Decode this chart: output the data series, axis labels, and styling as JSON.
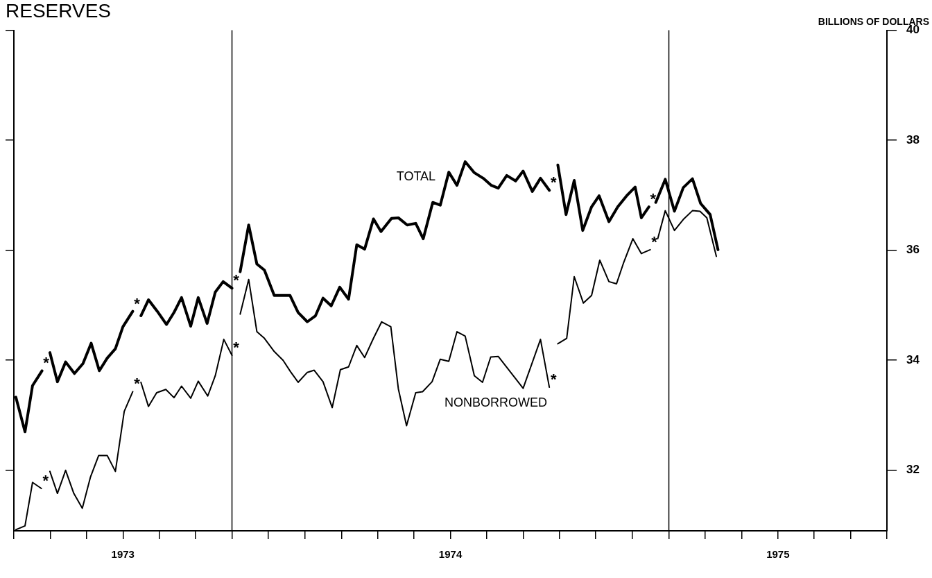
{
  "chart_data": {
    "type": "line",
    "title": "RESERVES",
    "ylabel": "BILLIONS OF DOLLARS",
    "xlim": [
      1972.667,
      1975.333
    ],
    "xticks": [
      {
        "value": 1972.667,
        "label": null
      },
      {
        "value": 1972.778,
        "label": null
      },
      {
        "value": 1972.889,
        "label": null
      },
      1973,
      {
        "value": 1973.111,
        "label": null
      },
      {
        "value": 1973.222,
        "label": null
      },
      {
        "value": 1973.333,
        "label": null
      },
      {
        "value": 1973.444,
        "label": null
      },
      {
        "value": 1973.556,
        "label": null
      },
      {
        "value": 1973.667,
        "label": null
      },
      {
        "value": 1973.778,
        "label": null
      },
      {
        "value": 1973.889,
        "label": null
      },
      1974,
      {
        "value": 1974.111,
        "label": null
      },
      {
        "value": 1974.222,
        "label": null
      },
      {
        "value": 1974.333,
        "label": null
      },
      {
        "value": 1974.444,
        "label": null
      },
      {
        "value": 1974.556,
        "label": null
      },
      {
        "value": 1974.667,
        "label": null
      },
      {
        "value": 1974.778,
        "label": null
      },
      {
        "value": 1974.889,
        "label": null
      },
      1975,
      {
        "value": 1975.111,
        "label": null
      },
      {
        "value": 1975.222,
        "label": null
      },
      {
        "value": 1975.333,
        "label": null
      }
    ],
    "ylim": [
      30.9,
      40
    ],
    "yticks": [
      32,
      34,
      36,
      38,
      40
    ],
    "legend": false,
    "marker": "none",
    "line_style": "solid",
    "series": [
      {
        "name": "TOTAL",
        "color": "#000000",
        "x": [
          1972.673,
          1972.701,
          1972.724,
          1972.753,
          1972.765,
          1972.777,
          1972.8,
          1972.825,
          1972.852,
          1972.878,
          1972.903,
          1972.928,
          1972.952,
          1972.977,
          1973.0,
          1973.03,
          1973.04,
          1973.055,
          1973.078,
          1973.105,
          1973.133,
          1973.156,
          1973.179,
          1973.207,
          1973.23,
          1973.257,
          1973.282,
          1973.306,
          1973.333,
          1973.343,
          1973.358,
          1973.384,
          1973.409,
          1973.432,
          1973.462,
          1973.51,
          1973.535,
          1973.563,
          1973.588,
          1973.611,
          1973.636,
          1973.662,
          1973.689,
          1973.714,
          1973.738,
          1973.765,
          1973.788,
          1973.82,
          1973.841,
          1973.868,
          1973.894,
          1973.917,
          1973.946,
          1973.969,
          1973.995,
          1974.02,
          1974.045,
          1974.073,
          1974.1,
          1974.125,
          1974.146,
          1974.172,
          1974.199,
          1974.222,
          1974.25,
          1974.275,
          1974.302,
          1974.31,
          1974.328,
          1974.353,
          1974.378,
          1974.404,
          1974.431,
          1974.454,
          1974.484,
          1974.511,
          1974.538,
          1974.564,
          1974.583,
          1974.606,
          1974.614,
          1974.627,
          1974.656,
          1974.684,
          1974.711,
          1974.739,
          1974.764,
          1974.793,
          1974.817
        ],
        "values": [
          33.33,
          32.7,
          33.54,
          33.81,
          null,
          34.14,
          33.61,
          33.97,
          33.76,
          33.94,
          34.31,
          33.81,
          34.04,
          34.21,
          34.61,
          34.89,
          null,
          34.81,
          35.1,
          34.89,
          34.65,
          34.87,
          35.14,
          34.62,
          35.14,
          34.67,
          35.24,
          35.43,
          35.31,
          null,
          35.61,
          36.46,
          35.75,
          35.64,
          35.18,
          35.18,
          34.87,
          34.7,
          34.81,
          35.13,
          34.99,
          35.33,
          35.11,
          36.1,
          36.02,
          36.57,
          36.34,
          36.58,
          36.59,
          36.46,
          36.49,
          36.21,
          36.87,
          36.82,
          37.42,
          37.18,
          37.61,
          37.41,
          37.31,
          37.18,
          37.13,
          37.36,
          37.26,
          37.44,
          37.07,
          37.31,
          37.09,
          null,
          37.55,
          36.65,
          37.27,
          36.36,
          36.79,
          36.99,
          36.52,
          36.79,
          36.99,
          37.15,
          36.59,
          36.79,
          null,
          36.87,
          37.29,
          36.71,
          37.14,
          37.3,
          36.85,
          36.65,
          36.01
        ]
      },
      {
        "name": "NONBORROWED",
        "color": "#000000",
        "x": [
          1972.673,
          1972.701,
          1972.724,
          1972.751,
          1972.765,
          1972.777,
          1972.8,
          1972.825,
          1972.85,
          1972.876,
          1972.901,
          1972.926,
          1972.952,
          1972.977,
          1973.004,
          1973.03,
          1973.04,
          1973.055,
          1973.078,
          1973.103,
          1973.131,
          1973.156,
          1973.179,
          1973.207,
          1973.23,
          1973.259,
          1973.282,
          1973.308,
          1973.333,
          1973.343,
          1973.358,
          1973.384,
          1973.409,
          1973.432,
          1973.462,
          1973.489,
          1973.512,
          1973.535,
          1973.563,
          1973.584,
          1973.611,
          1973.639,
          1973.664,
          1973.689,
          1973.714,
          1973.738,
          1973.765,
          1973.79,
          1973.818,
          1973.841,
          1973.866,
          1973.894,
          1973.915,
          1973.944,
          1973.969,
          1973.995,
          1974.02,
          1974.045,
          1974.073,
          1974.098,
          1974.123,
          1974.146,
          1974.222,
          1974.275,
          1974.302,
          1974.31,
          1974.328,
          1974.355,
          1974.378,
          1974.406,
          1974.431,
          1974.456,
          1974.484,
          1974.507,
          1974.528,
          1974.557,
          1974.583,
          1974.61,
          1974.62,
          1974.633,
          1974.656,
          1974.684,
          1974.711,
          1974.739,
          1974.762,
          1974.783,
          1974.812
        ],
        "values": [
          30.92,
          30.99,
          31.78,
          31.67,
          null,
          31.98,
          31.58,
          32.0,
          31.58,
          31.31,
          31.88,
          32.27,
          32.27,
          31.98,
          33.07,
          33.43,
          null,
          33.6,
          33.16,
          33.41,
          33.47,
          33.32,
          33.53,
          33.31,
          33.62,
          33.35,
          33.72,
          34.38,
          34.09,
          null,
          34.84,
          35.47,
          34.52,
          34.4,
          34.16,
          34.0,
          33.79,
          33.6,
          33.78,
          33.82,
          33.61,
          33.14,
          33.83,
          33.88,
          34.27,
          34.05,
          34.4,
          34.7,
          34.61,
          33.48,
          32.81,
          33.41,
          33.43,
          33.61,
          34.02,
          33.98,
          34.52,
          34.44,
          33.72,
          33.6,
          34.06,
          34.07,
          33.49,
          34.38,
          33.51,
          null,
          34.3,
          34.4,
          35.52,
          35.04,
          35.18,
          35.82,
          35.43,
          35.39,
          35.76,
          36.21,
          35.94,
          36.01,
          null,
          36.21,
          36.72,
          36.36,
          36.56,
          36.72,
          36.71,
          36.59,
          35.89
        ]
      }
    ],
    "ref_lines": [
      {
        "axis": "x",
        "value": 1973.333,
        "color": "#000000"
      },
      {
        "axis": "x",
        "value": 1974.667,
        "color": "#000000"
      }
    ],
    "annotations": [
      {
        "text": "*",
        "x": 1972.753,
        "y": 33.81
      },
      {
        "text": "*",
        "x": 1973.03,
        "y": 34.89
      },
      {
        "text": "*",
        "x": 1973.333,
        "y": 35.31
      },
      {
        "text": "*",
        "x": 1974.302,
        "y": 37.09
      },
      {
        "text": "*",
        "x": 1974.606,
        "y": 36.79
      },
      {
        "text": "*",
        "x": 1972.751,
        "y": 31.67
      },
      {
        "text": "*",
        "x": 1973.03,
        "y": 33.43
      },
      {
        "text": "*",
        "x": 1973.333,
        "y": 34.09
      },
      {
        "text": "*",
        "x": 1974.302,
        "y": 33.51
      },
      {
        "text": "*",
        "x": 1974.61,
        "y": 36.01
      }
    ]
  }
}
